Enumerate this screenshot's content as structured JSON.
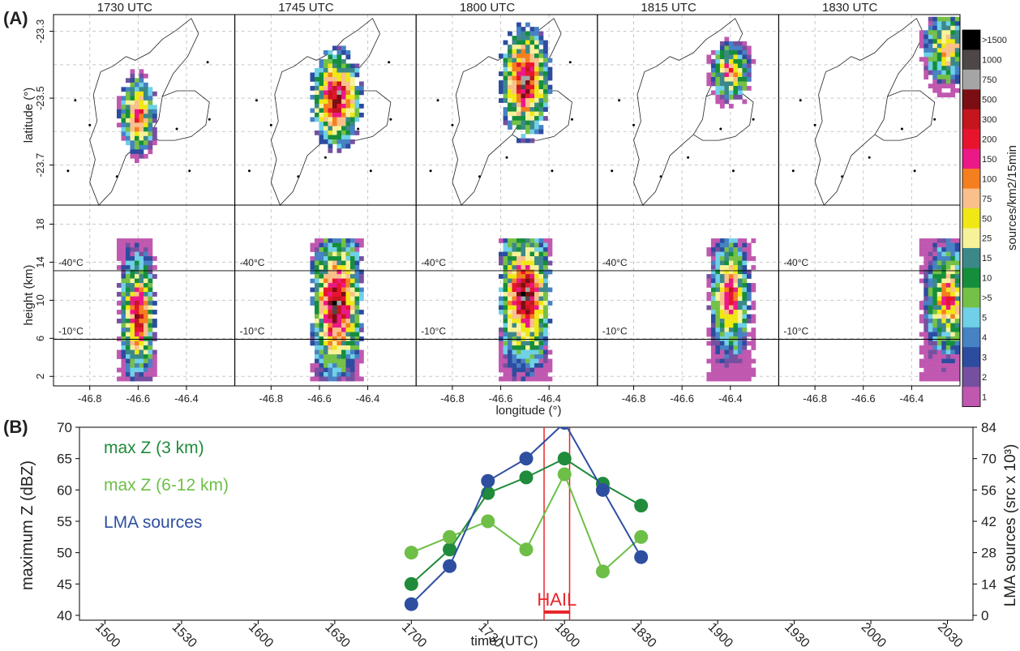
{
  "panel_labels": {
    "a": "(A)",
    "b": "(B)"
  },
  "colorbar": {
    "label": "sources/km2/15min",
    "levels": [
      {
        "label": ">1500",
        "color": "#000000"
      },
      {
        "label": "1000",
        "color": "#4d4747"
      },
      {
        "label": "750",
        "color": "#a5a5a5"
      },
      {
        "label": "500",
        "color": "#7a0e12"
      },
      {
        "label": "300",
        "color": "#c4161e"
      },
      {
        "label": "200",
        "color": "#e8142d"
      },
      {
        "label": "150",
        "color": "#ec1887"
      },
      {
        "label": "100",
        "color": "#f57f1f"
      },
      {
        "label": "75",
        "color": "#f9c08b"
      },
      {
        "label": "50",
        "color": "#f0e815"
      },
      {
        "label": "25",
        "color": "#f7f29a"
      },
      {
        "label": "15",
        "color": "#3c8889"
      },
      {
        "label": "10",
        "color": "#158e3b"
      },
      {
        "label": ">5",
        "color": "#75c046"
      },
      {
        "label": "5",
        "color": "#6fd0e7"
      },
      {
        "label": "4",
        "color": "#4682c4"
      },
      {
        "label": "3",
        "color": "#2c4c9f"
      },
      {
        "label": "2",
        "color": "#7550a0"
      },
      {
        "label": "1",
        "color": "#c058b0"
      }
    ]
  },
  "chart_data": [
    {
      "type": "heatmap",
      "panels": [
        "1730 UTC",
        "1745 UTC",
        "1800 UTC",
        "1815 UTC",
        "1830 UTC"
      ],
      "plan_view": {
        "ylabel": "latitude (°)",
        "yticks": [
          "-23.3",
          "-23.5",
          "-23.7"
        ],
        "ylim": [
          -23.82,
          -23.25
        ],
        "xlim": [
          -46.95,
          -46.2
        ]
      },
      "vertical_section": {
        "ylabel": "height (km)",
        "yticks": [
          "2",
          "6",
          "10",
          "14",
          "18"
        ],
        "ylim": [
          1,
          20
        ],
        "isotherms": [
          {
            "label": "-40°C",
            "height_km": 13.1
          },
          {
            "label": "-10°C",
            "height_km": 5.9
          }
        ]
      },
      "xlabel": "longitude (°)",
      "xticks": [
        "-46.8",
        "-46.6",
        "-46.4"
      ],
      "storm_centers": [
        {
          "time": "1730 UTC",
          "lon": -46.6,
          "lat": -23.55,
          "lon_half_width": 0.07,
          "lat_half_height": 0.11,
          "core_height_km": 8.5,
          "peak": "750"
        },
        {
          "time": "1745 UTC",
          "lon": -46.53,
          "lat": -23.5,
          "lon_half_width": 0.09,
          "lat_half_height": 0.13,
          "core_height_km": 9.5,
          "peak": ">1500"
        },
        {
          "time": "1800 UTC",
          "lon": -46.5,
          "lat": -23.45,
          "lon_half_width": 0.09,
          "lat_half_height": 0.15,
          "core_height_km": 10.5,
          "peak": ">1500"
        },
        {
          "time": "1815 UTC",
          "lon": -46.4,
          "lat": -23.42,
          "lon_half_width": 0.08,
          "lat_half_height": 0.09,
          "core_height_km": 10.5,
          "peak": "500"
        },
        {
          "time": "1830 UTC",
          "lon": -46.25,
          "lat": -23.35,
          "lon_half_width": 0.1,
          "lat_half_height": 0.12,
          "core_height_km": 10,
          "peak": "300"
        }
      ]
    },
    {
      "type": "line",
      "xlabel": "time (UTC)",
      "ylabel": "maximum Z (dBZ)",
      "y2label": "LMA sources (src x 10³)",
      "xticks": [
        "1500",
        "1530",
        "1600",
        "1630",
        "1700",
        "1730",
        "1800",
        "1830",
        "1900",
        "1930",
        "2000",
        "2030"
      ],
      "xlim": [
        -10,
        340
      ],
      "ylim": [
        40,
        70
      ],
      "yticks": [
        40,
        45,
        50,
        55,
        60,
        65,
        70
      ],
      "y2lim": [
        0,
        84
      ],
      "y2ticks": [
        0,
        14,
        28,
        42,
        56,
        70,
        84
      ],
      "series": [
        {
          "name": "max Z (3 km)",
          "color": "#1f8b3b",
          "axis": "left",
          "x_minutes": [
            120,
            135,
            150,
            165,
            180,
            195,
            210
          ],
          "x": [
            "1700",
            "1715",
            "1730",
            "1745",
            "1800",
            "1815",
            "1830"
          ],
          "values": [
            45,
            50.5,
            59.5,
            62,
            65,
            61,
            57.5
          ]
        },
        {
          "name": "max Z (6-12 km)",
          "color": "#6dbf47",
          "axis": "left",
          "x_minutes": [
            120,
            135,
            150,
            165,
            180,
            195,
            210
          ],
          "x": [
            "1700",
            "1715",
            "1730",
            "1745",
            "1800",
            "1815",
            "1830"
          ],
          "values": [
            50,
            52.5,
            55,
            50.5,
            62.5,
            47,
            52.5
          ]
        },
        {
          "name": "LMA sources",
          "color": "#2e4fa0",
          "axis": "right",
          "x_minutes": [
            120,
            135,
            150,
            165,
            180,
            195,
            210
          ],
          "x": [
            "1700",
            "1715",
            "1730",
            "1745",
            "1800",
            "1815",
            "1830"
          ],
          "values": [
            5,
            22,
            60,
            70,
            86,
            56,
            26
          ]
        }
      ],
      "annotations": [
        {
          "text": "HAIL",
          "color": "#e8262a",
          "x_start": 172,
          "x_end": 182
        }
      ]
    }
  ]
}
